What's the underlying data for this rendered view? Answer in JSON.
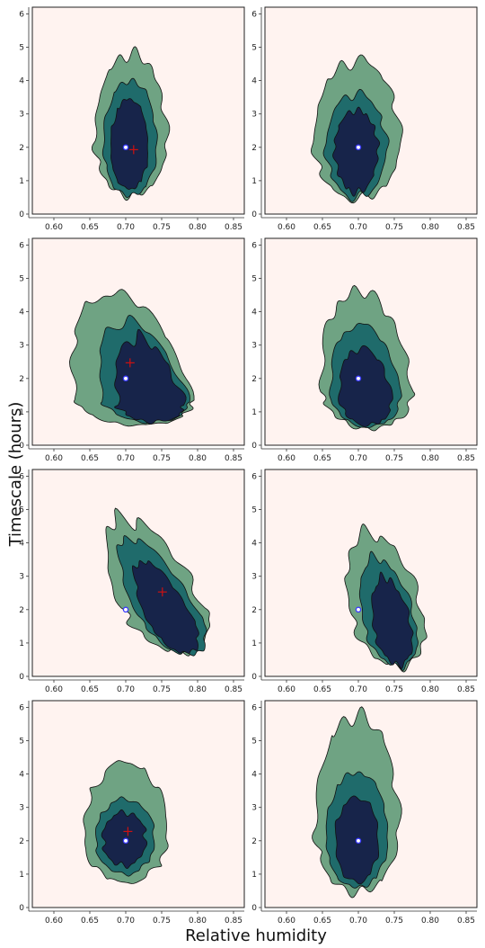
{
  "chart_data": {
    "type": "contour",
    "layout": "4x2 grid of filled posterior-density contour panels",
    "xlabel": "Relative humidity",
    "ylabel": "Timescale (hours)",
    "xlim": [
      0.57,
      0.865
    ],
    "ylim": [
      0,
      6.2
    ],
    "xticks": [
      0.6,
      0.65,
      0.7,
      0.75,
      0.8,
      0.85
    ],
    "xtick_labels": [
      "0.60",
      "0.65",
      "0.70",
      "0.75",
      "0.80",
      "0.85"
    ],
    "yticks": [
      0,
      1,
      2,
      3,
      4,
      5,
      6
    ],
    "ytick_labels": [
      "0",
      "1",
      "2",
      "3",
      "4",
      "5",
      "6"
    ],
    "grid": false,
    "colors": {
      "background": "#fff3f0",
      "outer_level": "#6fa383",
      "middle_level": "#1f6b6b",
      "inner_level": "#17244a",
      "contour_line": "#111111",
      "true_value_marker": "#3a3aff",
      "estimate_marker": "#cc1111"
    },
    "panels": [
      {
        "true": [
          0.7,
          2.0
        ],
        "estimate": [
          0.711,
          1.93
        ],
        "inner": {
          "cx": 0.705,
          "cy": 1.95,
          "rx": 0.026,
          "up": 1.5,
          "down": 1.2,
          "sx": 0.0
        },
        "middle": {
          "cx": 0.706,
          "cy": 2.05,
          "rx": 0.037,
          "up": 1.95,
          "down": 1.5,
          "sx": 0.0
        },
        "outer": {
          "cx": 0.707,
          "cy": 2.2,
          "rx": 0.05,
          "up": 2.6,
          "down": 1.65,
          "sx": 0.0
        }
      },
      {
        "true": [
          0.7,
          2.0
        ],
        "estimate": null,
        "inner": {
          "cx": 0.697,
          "cy": 1.95,
          "rx": 0.03,
          "up": 1.15,
          "down": 1.3,
          "sx": 0.0
        },
        "middle": {
          "cx": 0.697,
          "cy": 2.0,
          "rx": 0.042,
          "up": 1.6,
          "down": 1.5,
          "sx": 0.0
        },
        "outer": {
          "cx": 0.698,
          "cy": 2.15,
          "rx": 0.06,
          "up": 2.45,
          "down": 1.7,
          "sx": 0.0
        }
      },
      {
        "true": [
          0.7,
          2.0
        ],
        "estimate": [
          0.706,
          2.47
        ],
        "inner": {
          "cx": 0.735,
          "cy": 1.2,
          "rx": 0.045,
          "up": 2.0,
          "down": 0.5,
          "sx": -0.01
        },
        "middle": {
          "cx": 0.728,
          "cy": 1.3,
          "rx": 0.058,
          "up": 2.4,
          "down": 0.6,
          "sx": -0.012
        },
        "outer": {
          "cx": 0.712,
          "cy": 1.35,
          "rx": 0.08,
          "up": 3.2,
          "down": 0.75,
          "sx": -0.01
        }
      },
      {
        "true": [
          0.7,
          2.0
        ],
        "estimate": null,
        "inner": {
          "cx": 0.71,
          "cy": 1.4,
          "rx": 0.036,
          "up": 1.5,
          "down": 0.8,
          "sx": -0.004
        },
        "middle": {
          "cx": 0.71,
          "cy": 1.5,
          "rx": 0.048,
          "up": 2.1,
          "down": 0.95,
          "sx": -0.004
        },
        "outer": {
          "cx": 0.712,
          "cy": 1.6,
          "rx": 0.062,
          "up": 3.0,
          "down": 1.1,
          "sx": -0.004
        }
      },
      {
        "true": [
          0.7,
          2.0
        ],
        "estimate": [
          0.751,
          2.53
        ],
        "inner": {
          "cx": 0.762,
          "cy": 1.7,
          "rx": 0.032,
          "up": 1.75,
          "down": 1.0,
          "sx": -0.022
        },
        "middle": {
          "cx": 0.76,
          "cy": 1.85,
          "rx": 0.043,
          "up": 2.3,
          "down": 1.2,
          "sx": -0.024
        },
        "outer": {
          "cx": 0.752,
          "cy": 2.05,
          "rx": 0.058,
          "up": 2.7,
          "down": 1.3,
          "sx": -0.02
        }
      },
      {
        "true": [
          0.7,
          2.0
        ],
        "estimate": null,
        "inner": {
          "cx": 0.748,
          "cy": 1.4,
          "rx": 0.026,
          "up": 1.55,
          "down": 1.05,
          "sx": -0.008
        },
        "middle": {
          "cx": 0.744,
          "cy": 1.55,
          "rx": 0.036,
          "up": 2.0,
          "down": 1.25,
          "sx": -0.01
        },
        "outer": {
          "cx": 0.74,
          "cy": 1.85,
          "rx": 0.05,
          "up": 2.45,
          "down": 1.55,
          "sx": -0.01
        }
      },
      {
        "true": [
          0.7,
          2.0
        ],
        "estimate": [
          0.703,
          2.28
        ],
        "inner": {
          "cx": 0.698,
          "cy": 2.05,
          "rx": 0.03,
          "up": 0.8,
          "down": 0.8,
          "sx": 0.0
        },
        "middle": {
          "cx": 0.699,
          "cy": 2.05,
          "rx": 0.041,
          "up": 1.2,
          "down": 1.05,
          "sx": 0.0
        },
        "outer": {
          "cx": 0.7,
          "cy": 2.15,
          "rx": 0.058,
          "up": 2.2,
          "down": 1.4,
          "sx": 0.0
        }
      },
      {
        "true": [
          0.7,
          2.0
        ],
        "estimate": null,
        "inner": {
          "cx": 0.698,
          "cy": 2.05,
          "rx": 0.03,
          "up": 1.25,
          "down": 1.3,
          "sx": 0.0
        },
        "middle": {
          "cx": 0.698,
          "cy": 2.1,
          "rx": 0.043,
          "up": 1.95,
          "down": 1.5,
          "sx": 0.0
        },
        "outer": {
          "cx": 0.698,
          "cy": 2.4,
          "rx": 0.058,
          "up": 3.35,
          "down": 1.95,
          "sx": 0.0
        }
      }
    ]
  }
}
